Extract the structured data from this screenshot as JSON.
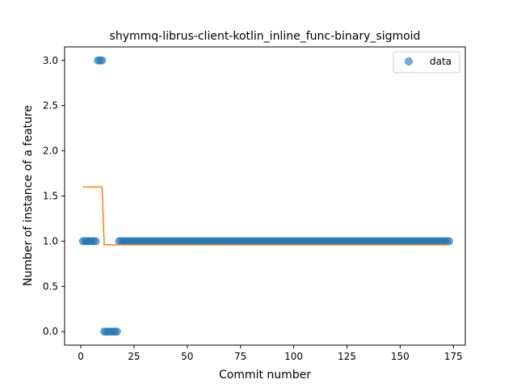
{
  "chart_data": {
    "type": "scatter",
    "title": "shymmq-librus-client-kotlin_inline_func-binary_sigmoid",
    "xlabel": "Commit number",
    "ylabel": "Number of instance of a feature",
    "xlim": [
      -7.6,
      180.6
    ],
    "ylim": [
      -0.15,
      3.15
    ],
    "xticks": [
      0,
      25,
      50,
      75,
      100,
      125,
      150,
      175
    ],
    "yticks": [
      0.0,
      0.5,
      1.0,
      1.5,
      2.0,
      2.5,
      3.0
    ],
    "ytick_labels": [
      "0.0",
      "0.5",
      "1.0",
      "1.5",
      "2.0",
      "2.5",
      "3.0"
    ],
    "legend": {
      "position": "top-right",
      "entries": [
        "data"
      ]
    },
    "series": [
      {
        "name": "data",
        "kind": "scatter",
        "color": "#1f77b4",
        "segments": [
          {
            "x_from": 1,
            "x_to": 7,
            "y": 1
          },
          {
            "x_from": 8,
            "x_to": 10,
            "y": 3
          },
          {
            "x_from": 11,
            "x_to": 17,
            "y": 0
          },
          {
            "x_from": 18,
            "x_to": 173,
            "y": 1
          }
        ]
      },
      {
        "kind": "line",
        "color": "#ff7f0e",
        "x": [
          1,
          10,
          11,
          173
        ],
        "y": [
          1.6,
          1.6,
          0.96,
          0.96
        ]
      }
    ]
  }
}
